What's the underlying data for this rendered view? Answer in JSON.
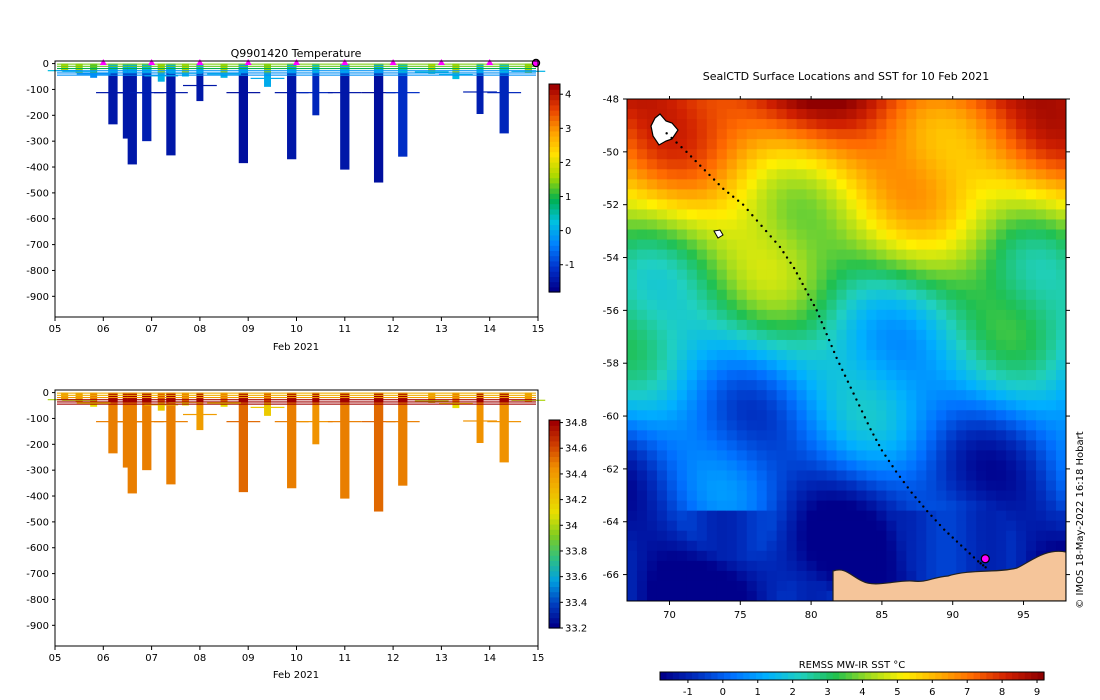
{
  "colors": {
    "temp_ramp": [
      "#00008b",
      "#0033cc",
      "#0080ff",
      "#00c0e0",
      "#00b050",
      "#a8d800",
      "#ffe000",
      "#ffa000",
      "#e84000",
      "#a00000"
    ],
    "sal_ramp": [
      "#00008b",
      "#0040c0",
      "#00a0e0",
      "#30c080",
      "#80cc20",
      "#e8e000",
      "#f0b800",
      "#f09000",
      "#d04000",
      "#a00000"
    ],
    "sst_ramp": [
      "#00008b",
      "#0030c0",
      "#0070ff",
      "#00b0ff",
      "#20d0c0",
      "#20c050",
      "#a0dc20",
      "#fff000",
      "#ffb000",
      "#ff6a00",
      "#d02000",
      "#900000"
    ],
    "land": "#f5c59a",
    "marker": "#ff00ff",
    "track": "#000000"
  },
  "chart_data": [
    {
      "id": "temperature",
      "type": "heatmap",
      "title": "Q9901420  Temperature",
      "xlabel": "Feb 2021",
      "xticks": [
        "05",
        "06",
        "07",
        "08",
        "09",
        "10",
        "11",
        "12",
        "13",
        "14",
        "15"
      ],
      "xlim": [
        5,
        15
      ],
      "ylim": [
        -980,
        10
      ],
      "yticks": [
        0,
        -100,
        -200,
        -300,
        -400,
        -500,
        -600,
        -700,
        -800,
        -900
      ],
      "colorbar": {
        "range": [
          -1.8,
          4.3
        ],
        "ticks": [
          4,
          3,
          2,
          1,
          0,
          -1
        ]
      },
      "profile_markers": [
        6,
        7,
        8,
        9,
        10,
        11,
        12,
        13,
        14
      ],
      "last_position_day": 15,
      "profiles": [
        {
          "day": 5.2,
          "depth": 30,
          "value": 0.2
        },
        {
          "day": 5.5,
          "depth": 35,
          "value": 0.1
        },
        {
          "day": 5.8,
          "depth": 55,
          "value": -0.3
        },
        {
          "day": 6.2,
          "depth": 235,
          "value": -1.5
        },
        {
          "day": 6.5,
          "depth": 290,
          "value": -1.5
        },
        {
          "day": 6.6,
          "depth": 390,
          "value": -1.5
        },
        {
          "day": 6.9,
          "depth": 300,
          "value": -1.4
        },
        {
          "day": 7.2,
          "depth": 70,
          "value": 0.1
        },
        {
          "day": 7.4,
          "depth": 355,
          "value": -1.5
        },
        {
          "day": 7.7,
          "depth": 50,
          "value": 0.2
        },
        {
          "day": 8.0,
          "depth": 145,
          "value": -1.5
        },
        {
          "day": 8.5,
          "depth": 55,
          "value": 0.1
        },
        {
          "day": 8.9,
          "depth": 385,
          "value": -1.6
        },
        {
          "day": 9.4,
          "depth": 90,
          "value": 0.0
        },
        {
          "day": 9.9,
          "depth": 370,
          "value": -1.5
        },
        {
          "day": 10.4,
          "depth": 200,
          "value": -1.3
        },
        {
          "day": 11.0,
          "depth": 410,
          "value": -1.5
        },
        {
          "day": 11.7,
          "depth": 460,
          "value": -1.6
        },
        {
          "day": 12.2,
          "depth": 360,
          "value": -1.2
        },
        {
          "day": 12.8,
          "depth": 40,
          "value": 0.3
        },
        {
          "day": 13.3,
          "depth": 60,
          "value": 0.2
        },
        {
          "day": 13.8,
          "depth": 195,
          "value": -1.4
        },
        {
          "day": 14.3,
          "depth": 270,
          "value": -1.3
        },
        {
          "day": 14.8,
          "depth": 35,
          "value": 0.1
        }
      ]
    },
    {
      "id": "salinity",
      "type": "heatmap",
      "title": "",
      "xlabel": "Feb 2021",
      "xticks": [
        "05",
        "06",
        "07",
        "08",
        "09",
        "10",
        "11",
        "12",
        "13",
        "14",
        "15"
      ],
      "xlim": [
        5,
        15
      ],
      "ylim": [
        -980,
        10
      ],
      "yticks": [
        0,
        -100,
        -200,
        -300,
        -400,
        -500,
        -600,
        -700,
        -800,
        -900
      ],
      "colorbar": {
        "range": [
          33.2,
          34.82
        ],
        "ticks": [
          "34.8",
          "34.6",
          "34.4",
          "34.2",
          "34",
          "33.8",
          "33.6",
          "33.4",
          "33.2"
        ]
      },
      "profiles": [
        {
          "day": 5.2,
          "depth": 30,
          "value": 34.0
        },
        {
          "day": 5.5,
          "depth": 35,
          "value": 34.0
        },
        {
          "day": 5.8,
          "depth": 55,
          "value": 34.1
        },
        {
          "day": 6.2,
          "depth": 235,
          "value": 34.5
        },
        {
          "day": 6.5,
          "depth": 290,
          "value": 34.5
        },
        {
          "day": 6.6,
          "depth": 390,
          "value": 34.5
        },
        {
          "day": 6.9,
          "depth": 300,
          "value": 34.5
        },
        {
          "day": 7.2,
          "depth": 70,
          "value": 34.2
        },
        {
          "day": 7.4,
          "depth": 355,
          "value": 34.5
        },
        {
          "day": 7.7,
          "depth": 50,
          "value": 34.1
        },
        {
          "day": 8.0,
          "depth": 145,
          "value": 34.4
        },
        {
          "day": 8.5,
          "depth": 55,
          "value": 34.1
        },
        {
          "day": 8.9,
          "depth": 385,
          "value": 34.55
        },
        {
          "day": 9.4,
          "depth": 90,
          "value": 34.2
        },
        {
          "day": 9.9,
          "depth": 370,
          "value": 34.5
        },
        {
          "day": 10.4,
          "depth": 200,
          "value": 34.45
        },
        {
          "day": 11.0,
          "depth": 410,
          "value": 34.5
        },
        {
          "day": 11.7,
          "depth": 460,
          "value": 34.55
        },
        {
          "day": 12.2,
          "depth": 360,
          "value": 34.5
        },
        {
          "day": 12.8,
          "depth": 40,
          "value": 34.0
        },
        {
          "day": 13.3,
          "depth": 60,
          "value": 34.1
        },
        {
          "day": 13.8,
          "depth": 195,
          "value": 34.45
        },
        {
          "day": 14.3,
          "depth": 270,
          "value": 34.45
        },
        {
          "day": 14.8,
          "depth": 35,
          "value": 34.0
        }
      ]
    },
    {
      "id": "sst_map",
      "type": "heatmap",
      "title": "SealCTD Surface Locations and SST for 10 Feb 2021",
      "xlim": [
        67,
        98
      ],
      "ylim": [
        -67,
        -48
      ],
      "xticks": [
        70,
        75,
        80,
        85,
        90,
        95
      ],
      "yticks": [
        -48,
        -50,
        -52,
        -54,
        -56,
        -58,
        -60,
        -62,
        -64,
        -66
      ],
      "colorbar": {
        "label": "REMSS MW-IR SST °C",
        "range": [
          -1.8,
          9.2
        ],
        "ticks": [
          -1,
          0,
          1,
          2,
          3,
          4,
          5,
          6,
          7,
          8,
          9
        ]
      },
      "credit": "© IMOS 18-May-2022 16:18 Hobart",
      "track": [
        [
          69.8,
          -49.3
        ],
        [
          71.2,
          -50.0
        ],
        [
          72.5,
          -50.7
        ],
        [
          73.8,
          -51.4
        ],
        [
          75.2,
          -52.0
        ],
        [
          76.5,
          -52.8
        ],
        [
          77.8,
          -53.6
        ],
        [
          78.8,
          -54.4
        ],
        [
          79.6,
          -55.2
        ],
        [
          80.4,
          -56.0
        ],
        [
          81.1,
          -56.9
        ],
        [
          81.8,
          -57.8
        ],
        [
          82.6,
          -58.7
        ],
        [
          83.4,
          -59.6
        ],
        [
          84.2,
          -60.5
        ],
        [
          85.0,
          -61.3
        ],
        [
          86.0,
          -62.1
        ],
        [
          87.1,
          -62.9
        ],
        [
          88.2,
          -63.6
        ],
        [
          89.4,
          -64.3
        ],
        [
          90.6,
          -64.9
        ],
        [
          91.8,
          -65.5
        ],
        [
          92.5,
          -65.8
        ]
      ],
      "last_position": [
        92.3,
        -65.4
      ],
      "islands": [
        [
          69.5,
          -49.3
        ],
        [
          73.5,
          -53.1
        ]
      ]
    }
  ]
}
